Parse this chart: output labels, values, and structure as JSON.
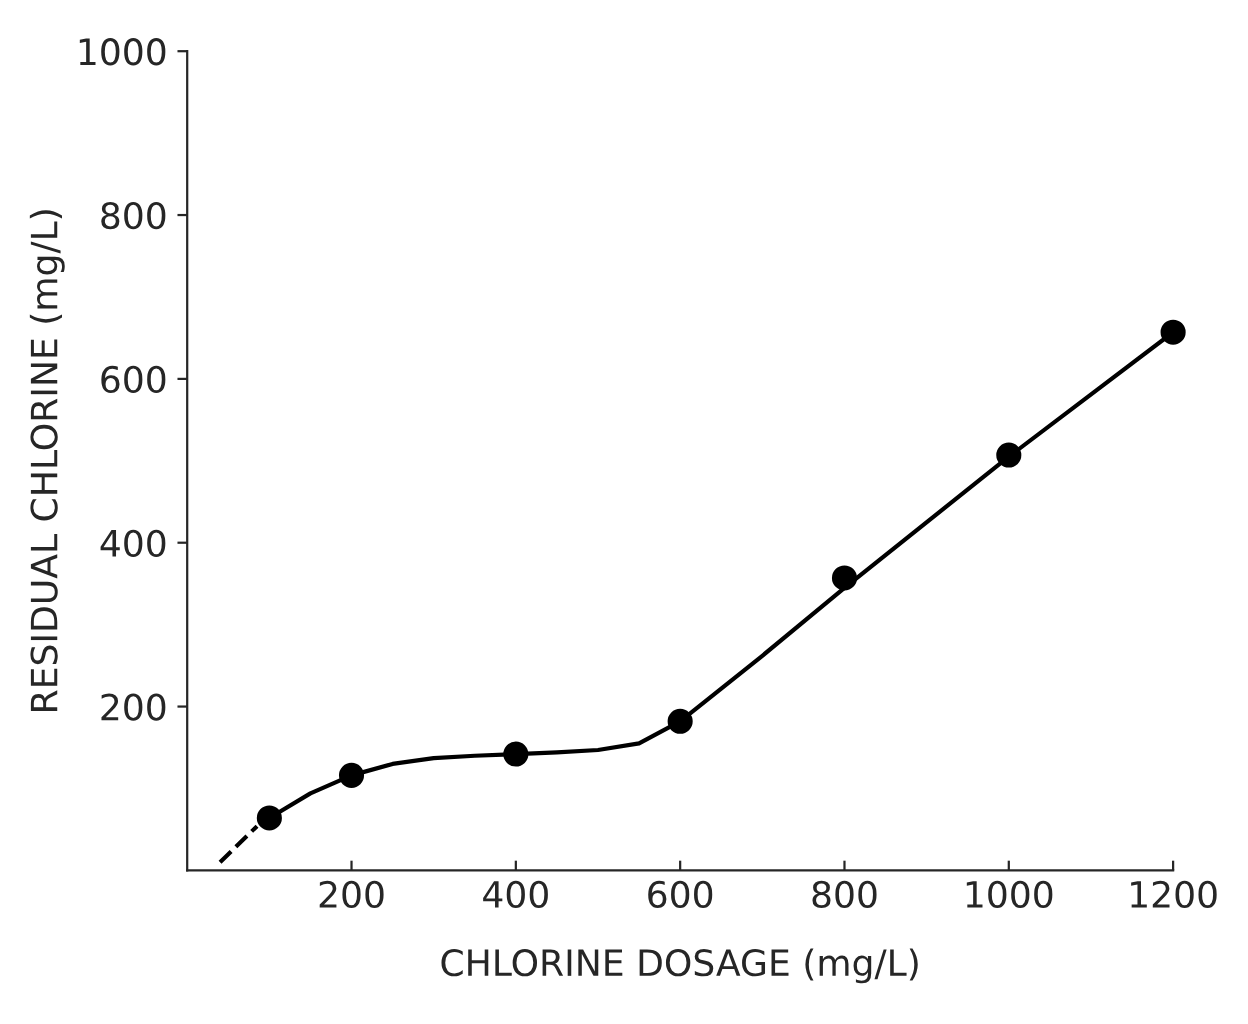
{
  "chart_data": {
    "type": "scatter",
    "xlabel": "CHLORINE DOSAGE (mg/L)",
    "ylabel": "RESIDUAL CHLORINE (mg/L)",
    "xlim": [
      0,
      1200
    ],
    "ylim": [
      0,
      1000
    ],
    "xticks": [
      200,
      400,
      600,
      800,
      1000,
      1200
    ],
    "yticks": [
      200,
      400,
      600,
      800,
      1000
    ],
    "grid": false,
    "legend": false,
    "series": [
      {
        "color": "#000000",
        "marker": "circle",
        "x": [
          100,
          200,
          400,
          600,
          800,
          1000,
          1200
        ],
        "values": [
          64,
          116,
          142,
          182,
          357,
          507,
          657
        ]
      },
      {
        "type": "line",
        "color": "#000000",
        "marker": "none",
        "line_style": "solid",
        "x": [
          100,
          150,
          200,
          250,
          300,
          350,
          400,
          450,
          500,
          550,
          600,
          650,
          700,
          800,
          1000,
          1200
        ],
        "values": [
          64,
          94,
          116,
          130,
          137,
          140,
          142,
          144,
          147,
          155,
          182,
          222,
          262,
          345,
          505,
          657
        ]
      },
      {
        "type": "line",
        "color": "#000000",
        "marker": "none",
        "line_style": "dashed",
        "x": [
          40,
          85
        ],
        "values": [
          10,
          54
        ]
      }
    ]
  }
}
